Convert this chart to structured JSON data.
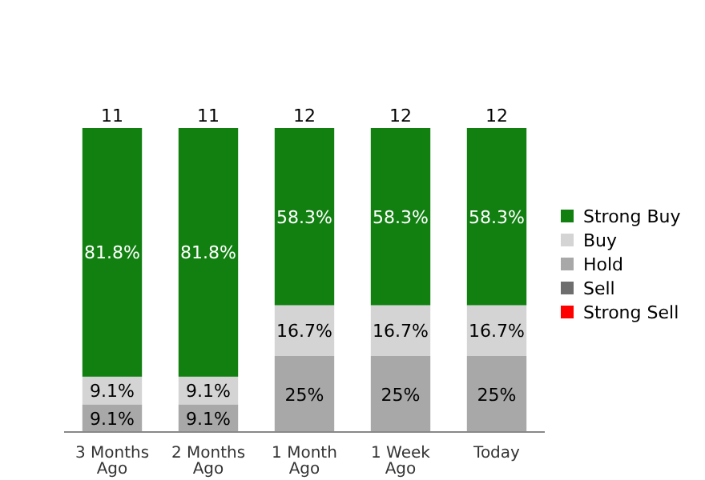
{
  "chart_data": {
    "type": "bar",
    "stacked": true,
    "legend": "right",
    "categories": [
      "3 Months Ago",
      "2 Months Ago",
      "1 Month Ago",
      "1 Week Ago",
      "Today"
    ],
    "series": [
      {
        "name": "Strong Sell",
        "color": "#ff0000",
        "values": [
          0,
          0,
          0,
          0,
          0
        ],
        "value_labels": [
          null,
          null,
          null,
          null,
          null
        ]
      },
      {
        "name": "Sell",
        "color": "#6e6e6e",
        "values": [
          0,
          0,
          0,
          0,
          0
        ],
        "value_labels": [
          null,
          null,
          null,
          null,
          null
        ]
      },
      {
        "name": "Hold",
        "color": "#a8a8a8",
        "values": [
          9.1,
          9.1,
          25,
          25,
          25
        ],
        "value_labels": [
          "9.1%",
          "9.1%",
          "25%",
          "25%",
          "25%"
        ]
      },
      {
        "name": "Buy",
        "color": "#d4d4d4",
        "values": [
          9.1,
          9.1,
          16.7,
          16.7,
          16.7
        ],
        "value_labels": [
          "9.1%",
          "9.1%",
          "16.7%",
          "16.7%",
          "16.7%"
        ]
      },
      {
        "name": "Strong Buy",
        "color": "#118011",
        "values": [
          81.8,
          81.8,
          58.3,
          58.3,
          58.3
        ],
        "value_labels": [
          "81.8%",
          "81.8%",
          "58.3%",
          "58.3%",
          "58.3%"
        ]
      }
    ],
    "annotations": [
      {
        "text": "11",
        "x": "3 Months Ago",
        "y": 100
      },
      {
        "text": "11",
        "x": "2 Months Ago",
        "y": 100
      },
      {
        "text": "12",
        "x": "1 Month Ago",
        "y": 100
      },
      {
        "text": "12",
        "x": "1 Week Ago",
        "y": 100
      },
      {
        "text": "12",
        "x": "Today",
        "y": 100
      }
    ]
  }
}
